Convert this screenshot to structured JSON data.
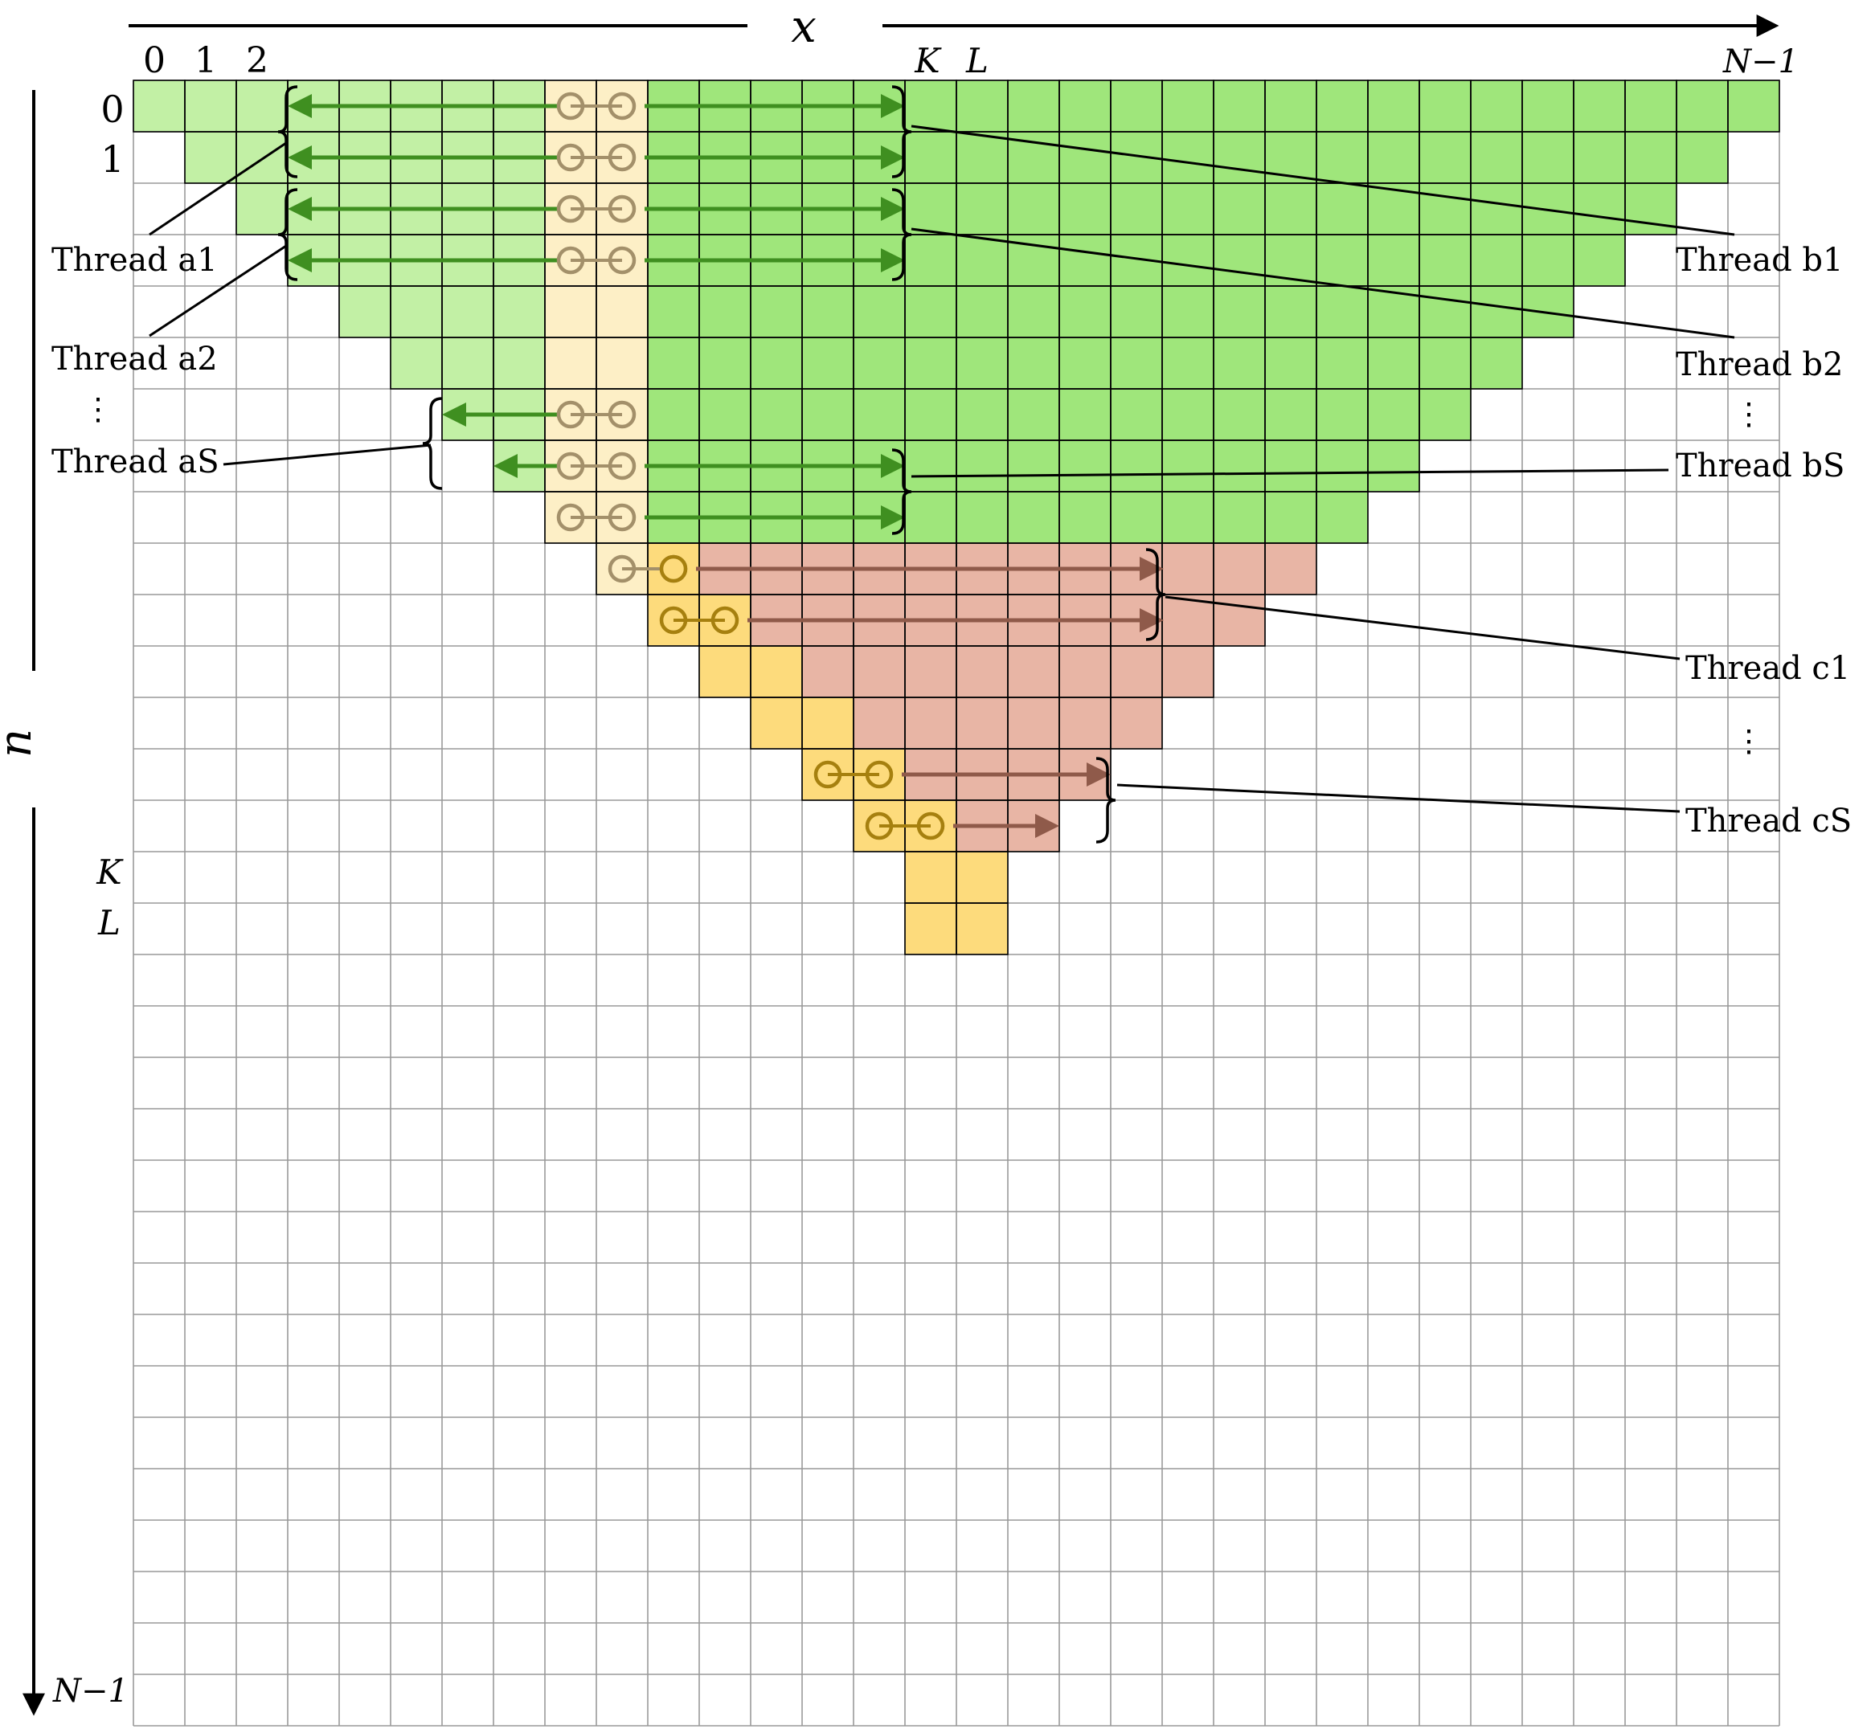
{
  "axes": {
    "x_label": "x",
    "n_label": "n",
    "x_ticks": [
      "0",
      "1",
      "2"
    ],
    "x_marks": [
      "K",
      "L"
    ],
    "x_end": "N−1",
    "n_ticks": [
      "0",
      "1"
    ],
    "n_marks": [
      "K",
      "L"
    ],
    "n_end": "N−1"
  },
  "threads": {
    "a1": "Thread a1",
    "a2": "Thread a2",
    "aS": "Thread aS",
    "b1": "Thread b1",
    "b2": "Thread b2",
    "bS": "Thread bS",
    "c1": "Thread c1",
    "cS": "Thread cS",
    "ellipsis": "⋮"
  },
  "colors": {
    "light_green": "#c2f0a5",
    "green": "#9fe67b",
    "light_yellow": "#fdefc6",
    "yellow": "#fddb7c",
    "red": "#e8b5a5",
    "grid": "#999999",
    "arrow_green": "#3f8f20",
    "arrow_red": "#8f5a4a",
    "ring_light": "#a3906a",
    "ring_dark": "#a6800f"
  }
}
